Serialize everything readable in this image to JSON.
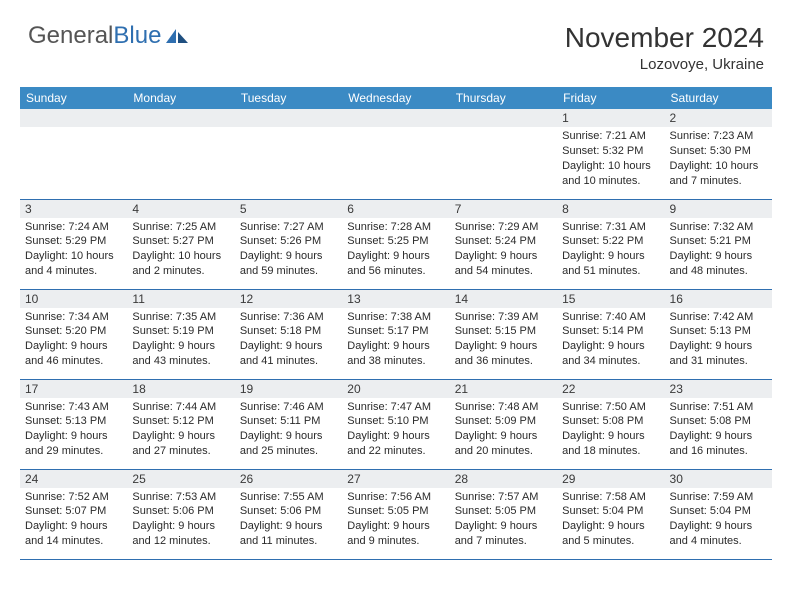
{
  "logo": {
    "text1": "General",
    "text2": "Blue"
  },
  "title": {
    "month": "November 2024",
    "location": "Lozovoye, Ukraine"
  },
  "colors": {
    "header_bg": "#3b8ac4",
    "header_text": "#ffffff",
    "daynum_bg": "#eceef0",
    "border": "#2f6fb0",
    "text": "#2a2a2a"
  },
  "weekdays": [
    "Sunday",
    "Monday",
    "Tuesday",
    "Wednesday",
    "Thursday",
    "Friday",
    "Saturday"
  ],
  "weeks": [
    [
      null,
      null,
      null,
      null,
      null,
      {
        "n": "1",
        "sunrise": "7:21 AM",
        "sunset": "5:32 PM",
        "daylight": "10 hours and 10 minutes."
      },
      {
        "n": "2",
        "sunrise": "7:23 AM",
        "sunset": "5:30 PM",
        "daylight": "10 hours and 7 minutes."
      }
    ],
    [
      {
        "n": "3",
        "sunrise": "7:24 AM",
        "sunset": "5:29 PM",
        "daylight": "10 hours and 4 minutes."
      },
      {
        "n": "4",
        "sunrise": "7:25 AM",
        "sunset": "5:27 PM",
        "daylight": "10 hours and 2 minutes."
      },
      {
        "n": "5",
        "sunrise": "7:27 AM",
        "sunset": "5:26 PM",
        "daylight": "9 hours and 59 minutes."
      },
      {
        "n": "6",
        "sunrise": "7:28 AM",
        "sunset": "5:25 PM",
        "daylight": "9 hours and 56 minutes."
      },
      {
        "n": "7",
        "sunrise": "7:29 AM",
        "sunset": "5:24 PM",
        "daylight": "9 hours and 54 minutes."
      },
      {
        "n": "8",
        "sunrise": "7:31 AM",
        "sunset": "5:22 PM",
        "daylight": "9 hours and 51 minutes."
      },
      {
        "n": "9",
        "sunrise": "7:32 AM",
        "sunset": "5:21 PM",
        "daylight": "9 hours and 48 minutes."
      }
    ],
    [
      {
        "n": "10",
        "sunrise": "7:34 AM",
        "sunset": "5:20 PM",
        "daylight": "9 hours and 46 minutes."
      },
      {
        "n": "11",
        "sunrise": "7:35 AM",
        "sunset": "5:19 PM",
        "daylight": "9 hours and 43 minutes."
      },
      {
        "n": "12",
        "sunrise": "7:36 AM",
        "sunset": "5:18 PM",
        "daylight": "9 hours and 41 minutes."
      },
      {
        "n": "13",
        "sunrise": "7:38 AM",
        "sunset": "5:17 PM",
        "daylight": "9 hours and 38 minutes."
      },
      {
        "n": "14",
        "sunrise": "7:39 AM",
        "sunset": "5:15 PM",
        "daylight": "9 hours and 36 minutes."
      },
      {
        "n": "15",
        "sunrise": "7:40 AM",
        "sunset": "5:14 PM",
        "daylight": "9 hours and 34 minutes."
      },
      {
        "n": "16",
        "sunrise": "7:42 AM",
        "sunset": "5:13 PM",
        "daylight": "9 hours and 31 minutes."
      }
    ],
    [
      {
        "n": "17",
        "sunrise": "7:43 AM",
        "sunset": "5:13 PM",
        "daylight": "9 hours and 29 minutes."
      },
      {
        "n": "18",
        "sunrise": "7:44 AM",
        "sunset": "5:12 PM",
        "daylight": "9 hours and 27 minutes."
      },
      {
        "n": "19",
        "sunrise": "7:46 AM",
        "sunset": "5:11 PM",
        "daylight": "9 hours and 25 minutes."
      },
      {
        "n": "20",
        "sunrise": "7:47 AM",
        "sunset": "5:10 PM",
        "daylight": "9 hours and 22 minutes."
      },
      {
        "n": "21",
        "sunrise": "7:48 AM",
        "sunset": "5:09 PM",
        "daylight": "9 hours and 20 minutes."
      },
      {
        "n": "22",
        "sunrise": "7:50 AM",
        "sunset": "5:08 PM",
        "daylight": "9 hours and 18 minutes."
      },
      {
        "n": "23",
        "sunrise": "7:51 AM",
        "sunset": "5:08 PM",
        "daylight": "9 hours and 16 minutes."
      }
    ],
    [
      {
        "n": "24",
        "sunrise": "7:52 AM",
        "sunset": "5:07 PM",
        "daylight": "9 hours and 14 minutes."
      },
      {
        "n": "25",
        "sunrise": "7:53 AM",
        "sunset": "5:06 PM",
        "daylight": "9 hours and 12 minutes."
      },
      {
        "n": "26",
        "sunrise": "7:55 AM",
        "sunset": "5:06 PM",
        "daylight": "9 hours and 11 minutes."
      },
      {
        "n": "27",
        "sunrise": "7:56 AM",
        "sunset": "5:05 PM",
        "daylight": "9 hours and 9 minutes."
      },
      {
        "n": "28",
        "sunrise": "7:57 AM",
        "sunset": "5:05 PM",
        "daylight": "9 hours and 7 minutes."
      },
      {
        "n": "29",
        "sunrise": "7:58 AM",
        "sunset": "5:04 PM",
        "daylight": "9 hours and 5 minutes."
      },
      {
        "n": "30",
        "sunrise": "7:59 AM",
        "sunset": "5:04 PM",
        "daylight": "9 hours and 4 minutes."
      }
    ]
  ]
}
